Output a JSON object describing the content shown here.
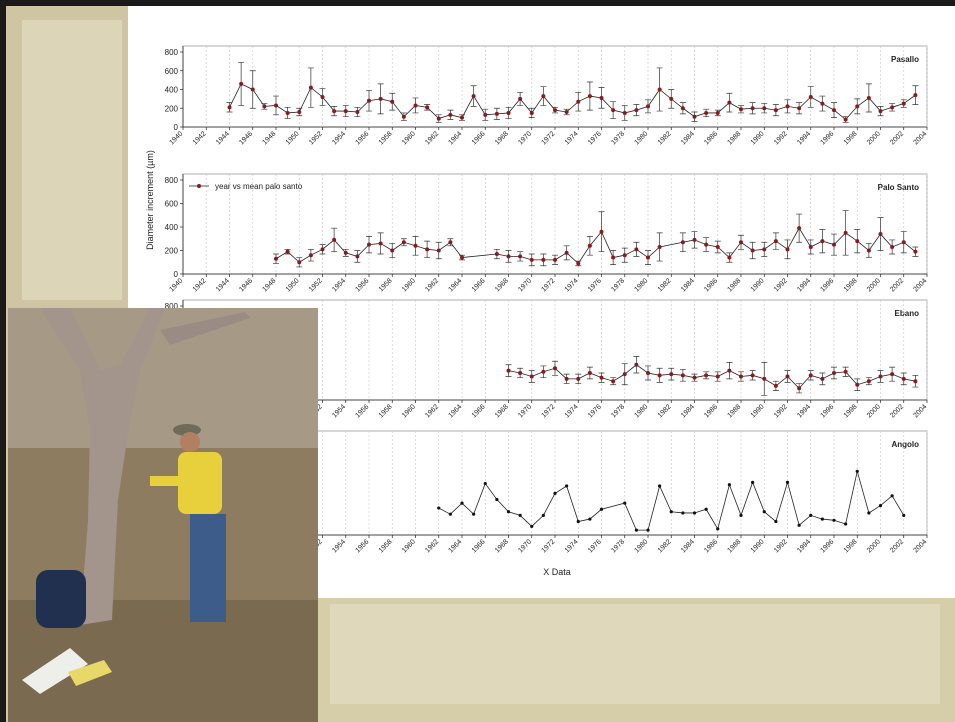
{
  "chart_data": [
    {
      "type": "line",
      "title": "Pasallo",
      "xlim": [
        1940,
        2004
      ],
      "ylim": [
        0,
        800
      ],
      "xticks": [
        1940,
        1942,
        1944,
        1946,
        1948,
        1950,
        1952,
        1954,
        1956,
        1958,
        1960,
        1962,
        1964,
        1966,
        1968,
        1970,
        1972,
        1974,
        1976,
        1978,
        1980,
        1982,
        1984,
        1986,
        1988,
        1990,
        1992,
        1994,
        1996,
        1998,
        2000,
        2002,
        2004
      ],
      "yticks": [
        0,
        200,
        400,
        600,
        800
      ],
      "grid": true,
      "x": [
        1944,
        1945,
        1946,
        1947,
        1948,
        1949,
        1950,
        1951,
        1952,
        1953,
        1954,
        1955,
        1956,
        1957,
        1958,
        1959,
        1960,
        1961,
        1962,
        1963,
        1964,
        1965,
        1966,
        1967,
        1968,
        1969,
        1970,
        1971,
        1972,
        1973,
        1974,
        1975,
        1976,
        1977,
        1978,
        1979,
        1980,
        1981,
        1982,
        1983,
        1984,
        1985,
        1986,
        1987,
        1988,
        1989,
        1990,
        1991,
        1992,
        1993,
        1994,
        1995,
        1996,
        1997,
        1998,
        1999,
        2000,
        2001,
        2002,
        2003
      ],
      "series": [
        {
          "color": "#8b1a1a",
          "values": [
            210,
            460,
            400,
            220,
            230,
            150,
            160,
            420,
            320,
            170,
            170,
            160,
            280,
            300,
            270,
            110,
            230,
            210,
            90,
            130,
            100,
            330,
            130,
            140,
            150,
            300,
            150,
            330,
            180,
            160,
            270,
            330,
            310,
            180,
            150,
            180,
            220,
            400,
            300,
            200,
            110,
            150,
            150,
            260,
            190,
            200,
            200,
            180,
            220,
            200,
            320,
            250,
            180,
            80,
            220,
            310,
            170,
            210,
            250,
            340
          ],
          "errors": [
            50,
            230,
            200,
            30,
            100,
            60,
            40,
            210,
            90,
            50,
            60,
            50,
            110,
            160,
            90,
            40,
            80,
            30,
            40,
            50,
            30,
            110,
            60,
            60,
            60,
            70,
            50,
            100,
            30,
            30,
            100,
            150,
            110,
            90,
            80,
            60,
            70,
            230,
            100,
            60,
            50,
            40,
            30,
            100,
            40,
            60,
            50,
            60,
            70,
            60,
            110,
            80,
            80,
            30,
            80,
            150,
            50,
            40,
            40,
            100
          ]
        }
      ]
    },
    {
      "type": "line",
      "title": "Palo Santo",
      "ylabel": "Diameter increment (µm)",
      "legend": true,
      "xlim": [
        1940,
        2004
      ],
      "ylim": [
        0,
        800
      ],
      "xticks": [
        1940,
        1942,
        1944,
        1946,
        1948,
        1950,
        1952,
        1954,
        1956,
        1958,
        1960,
        1962,
        1964,
        1966,
        1968,
        1970,
        1972,
        1974,
        1976,
        1978,
        1980,
        1982,
        1984,
        1986,
        1988,
        1990,
        1992,
        1994,
        1996,
        1998,
        2000,
        2002,
        2004
      ],
      "yticks": [
        0,
        200,
        400,
        600,
        800
      ],
      "grid": true,
      "x": [
        1948,
        1949,
        1950,
        1951,
        1952,
        1953,
        1954,
        1955,
        1956,
        1957,
        1958,
        1959,
        1960,
        1961,
        1962,
        1963,
        1964,
        1967,
        1968,
        1969,
        1970,
        1971,
        1972,
        1973,
        1974,
        1975,
        1976,
        1977,
        1978,
        1979,
        1980,
        1981,
        1983,
        1984,
        1985,
        1986,
        1987,
        1988,
        1989,
        1990,
        1991,
        1992,
        1993,
        1994,
        1995,
        1996,
        1997,
        1998,
        1999,
        2000,
        2001,
        2002,
        2003
      ],
      "series": [
        {
          "name": "year vs mean palo santo",
          "color": "#8b1a1a",
          "values": [
            130,
            190,
            100,
            160,
            210,
            290,
            180,
            150,
            250,
            260,
            200,
            270,
            240,
            210,
            200,
            270,
            140,
            170,
            150,
            150,
            120,
            120,
            120,
            180,
            90,
            240,
            360,
            140,
            160,
            210,
            140,
            230,
            270,
            290,
            250,
            230,
            140,
            270,
            200,
            210,
            280,
            210,
            390,
            230,
            280,
            250,
            350,
            280,
            200,
            340,
            230,
            270,
            190
          ],
          "errors": [
            40,
            20,
            40,
            50,
            40,
            100,
            30,
            50,
            70,
            90,
            60,
            30,
            80,
            70,
            70,
            30,
            20,
            40,
            50,
            40,
            50,
            50,
            40,
            60,
            20,
            80,
            170,
            60,
            60,
            60,
            60,
            120,
            80,
            70,
            60,
            50,
            40,
            60,
            70,
            60,
            70,
            80,
            120,
            60,
            100,
            90,
            190,
            100,
            60,
            140,
            60,
            90,
            40
          ]
        }
      ]
    },
    {
      "type": "line",
      "title": "Ebano",
      "xlim": [
        1940,
        2004
      ],
      "ylim": [
        0,
        800
      ],
      "xticks": [
        1952,
        1954,
        1956,
        1958,
        1960,
        1962,
        1964,
        1966,
        1968,
        1970,
        1972,
        1974,
        1976,
        1978,
        1980,
        1982,
        1984,
        1986,
        1988,
        1990,
        1992,
        1994,
        1996,
        1998,
        2000,
        2002,
        2004
      ],
      "yticks": [
        800
      ],
      "grid": true,
      "x": [
        1968,
        1969,
        1970,
        1971,
        1972,
        1973,
        1974,
        1975,
        1976,
        1977,
        1978,
        1979,
        1980,
        1981,
        1982,
        1983,
        1984,
        1985,
        1986,
        1987,
        1988,
        1989,
        1990,
        1991,
        1992,
        1993,
        1994,
        1995,
        1996,
        1997,
        1998,
        1999,
        2000,
        2001,
        2002,
        2003
      ],
      "series": [
        {
          "color": "#8b1a1a",
          "values": [
            250,
            230,
            200,
            240,
            270,
            180,
            180,
            230,
            190,
            160,
            220,
            300,
            230,
            210,
            220,
            210,
            190,
            210,
            200,
            250,
            200,
            210,
            180,
            120,
            200,
            100,
            210,
            180,
            230,
            240,
            130,
            160,
            200,
            220,
            180,
            160
          ],
          "errors": [
            50,
            40,
            50,
            50,
            60,
            40,
            40,
            50,
            40,
            30,
            90,
            70,
            60,
            60,
            50,
            50,
            30,
            30,
            40,
            70,
            40,
            40,
            140,
            40,
            50,
            40,
            40,
            50,
            50,
            40,
            50,
            30,
            50,
            60,
            50,
            50
          ]
        }
      ]
    },
    {
      "type": "line",
      "title": "Angolo",
      "xlabel": "X Data",
      "xlim": [
        1940,
        2004
      ],
      "ylim": [
        0,
        800
      ],
      "xticks": [
        1952,
        1954,
        1956,
        1958,
        1960,
        1962,
        1964,
        1966,
        1968,
        1970,
        1972,
        1974,
        1976,
        1978,
        1980,
        1982,
        1984,
        1986,
        1988,
        1990,
        1992,
        1994,
        1996,
        1998,
        2000,
        2002,
        2004
      ],
      "grid": true,
      "x": [
        1962,
        1963,
        1964,
        1965,
        1966,
        1967,
        1968,
        1969,
        1970,
        1971,
        1972,
        1973,
        1974,
        1975,
        1976,
        1978,
        1979,
        1980,
        1981,
        1982,
        1983,
        1984,
        1985,
        1986,
        1987,
        1988,
        1989,
        1990,
        1991,
        1992,
        1993,
        1994,
        1995,
        1996,
        1997,
        1998,
        1999,
        2000,
        2001,
        2002
      ],
      "series": [
        {
          "color": "#111111",
          "values": [
            220,
            170,
            260,
            170,
            420,
            290,
            190,
            160,
            70,
            160,
            340,
            400,
            110,
            130,
            210,
            260,
            40,
            40,
            400,
            190,
            180,
            180,
            210,
            50,
            410,
            160,
            430,
            190,
            110,
            430,
            80,
            160,
            130,
            120,
            90,
            520,
            180,
            240,
            320,
            160
          ]
        }
      ]
    }
  ]
}
